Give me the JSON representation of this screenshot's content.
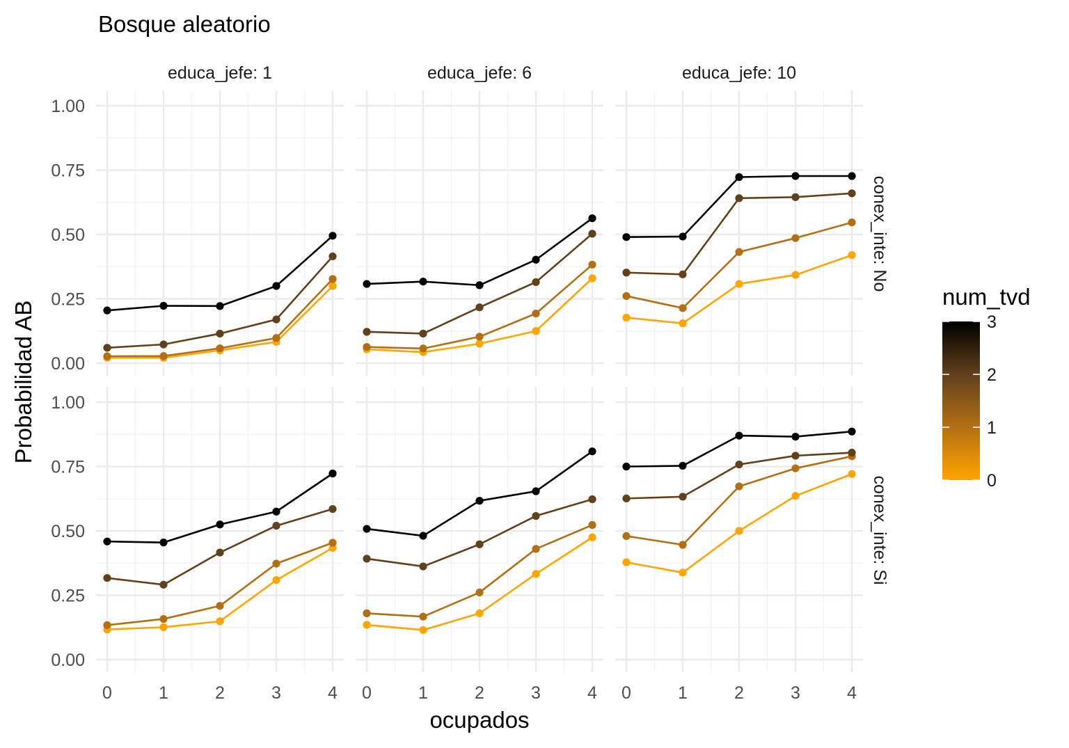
{
  "chart_data": {
    "type": "line",
    "title": "Bosque aleatorio",
    "xlabel": "ocupados",
    "ylabel": "Probabilidad AB",
    "x": [
      0,
      1,
      2,
      3,
      4
    ],
    "x_ticks": [
      "0",
      "1",
      "2",
      "3",
      "4"
    ],
    "y_ticks": [
      "0.00",
      "0.25",
      "0.50",
      "0.75",
      "1.00"
    ],
    "ylim": [
      0,
      1
    ],
    "grid": true,
    "legend": {
      "title": "num_tvd",
      "type": "colorbar",
      "placement": "right",
      "range": [
        0,
        3
      ],
      "ticks": [
        "0",
        "1",
        "2",
        "3"
      ],
      "low_color": "#FFA500",
      "high_color": "#000000"
    },
    "col_strips": [
      "educa_jefe: 1",
      "educa_jefe: 6",
      "educa_jefe: 10"
    ],
    "row_strips": [
      "conex_inte: No",
      "conex_inte: Si"
    ],
    "series_colors": {
      "0": "#FFA500",
      "1": "#B36F13",
      "2": "#61401C",
      "3": "#000000"
    },
    "panels": [
      {
        "educa_jefe": "educa_jefe: 1",
        "conex_inte": "conex_inte: No",
        "series": [
          {
            "num_tvd": 3,
            "values": [
              0.205,
              0.223,
              0.222,
              0.3,
              0.495
            ]
          },
          {
            "num_tvd": 2,
            "values": [
              0.06,
              0.073,
              0.115,
              0.17,
              0.415
            ]
          },
          {
            "num_tvd": 1,
            "values": [
              0.027,
              0.028,
              0.058,
              0.098,
              0.327
            ]
          },
          {
            "num_tvd": 0,
            "values": [
              0.021,
              0.021,
              0.05,
              0.083,
              0.3
            ]
          }
        ]
      },
      {
        "educa_jefe": "educa_jefe: 6",
        "conex_inte": "conex_inte: No",
        "series": [
          {
            "num_tvd": 3,
            "values": [
              0.308,
              0.317,
              0.303,
              0.402,
              0.563
            ]
          },
          {
            "num_tvd": 2,
            "values": [
              0.122,
              0.115,
              0.217,
              0.315,
              0.503
            ]
          },
          {
            "num_tvd": 1,
            "values": [
              0.063,
              0.057,
              0.103,
              0.193,
              0.383
            ]
          },
          {
            "num_tvd": 0,
            "values": [
              0.054,
              0.043,
              0.076,
              0.125,
              0.33
            ]
          }
        ]
      },
      {
        "educa_jefe": "educa_jefe: 10",
        "conex_inte": "conex_inte: No",
        "series": [
          {
            "num_tvd": 3,
            "values": [
              0.49,
              0.492,
              0.723,
              0.727,
              0.727
            ]
          },
          {
            "num_tvd": 2,
            "values": [
              0.352,
              0.345,
              0.641,
              0.645,
              0.66
            ]
          },
          {
            "num_tvd": 1,
            "values": [
              0.261,
              0.214,
              0.432,
              0.486,
              0.547
            ]
          },
          {
            "num_tvd": 0,
            "values": [
              0.177,
              0.155,
              0.308,
              0.343,
              0.42
            ]
          }
        ]
      },
      {
        "educa_jefe": "educa_jefe: 1",
        "conex_inte": "conex_inte: Si",
        "series": [
          {
            "num_tvd": 3,
            "values": [
              0.459,
              0.455,
              0.525,
              0.575,
              0.723
            ]
          },
          {
            "num_tvd": 2,
            "values": [
              0.317,
              0.291,
              0.416,
              0.52,
              0.585
            ]
          },
          {
            "num_tvd": 1,
            "values": [
              0.134,
              0.158,
              0.209,
              0.373,
              0.454
            ]
          },
          {
            "num_tvd": 0,
            "values": [
              0.117,
              0.126,
              0.149,
              0.309,
              0.434
            ]
          }
        ]
      },
      {
        "educa_jefe": "educa_jefe: 6",
        "conex_inte": "conex_inte: Si",
        "series": [
          {
            "num_tvd": 3,
            "values": [
              0.508,
              0.481,
              0.617,
              0.654,
              0.809
            ]
          },
          {
            "num_tvd": 2,
            "values": [
              0.392,
              0.362,
              0.448,
              0.558,
              0.623
            ]
          },
          {
            "num_tvd": 1,
            "values": [
              0.18,
              0.167,
              0.261,
              0.43,
              0.523
            ]
          },
          {
            "num_tvd": 0,
            "values": [
              0.135,
              0.115,
              0.18,
              0.333,
              0.475
            ]
          }
        ]
      },
      {
        "educa_jefe": "educa_jefe: 10",
        "conex_inte": "conex_inte: Si",
        "series": [
          {
            "num_tvd": 3,
            "values": [
              0.75,
              0.753,
              0.87,
              0.866,
              0.886
            ]
          },
          {
            "num_tvd": 2,
            "values": [
              0.626,
              0.633,
              0.758,
              0.792,
              0.804
            ]
          },
          {
            "num_tvd": 1,
            "values": [
              0.48,
              0.446,
              0.673,
              0.743,
              0.79
            ]
          },
          {
            "num_tvd": 0,
            "values": [
              0.378,
              0.338,
              0.5,
              0.636,
              0.721
            ]
          }
        ]
      }
    ]
  }
}
